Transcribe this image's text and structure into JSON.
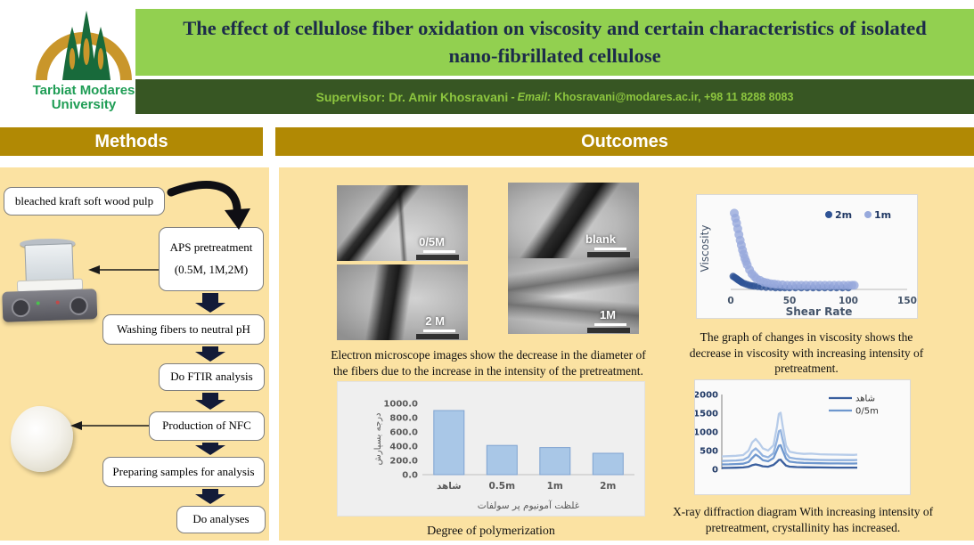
{
  "header": {
    "logo": {
      "text_line1": "Tarbiat Modares",
      "text_line2": "University"
    },
    "title": "The effect of cellulose fiber oxidation on viscosity and certain characteristics of isolated nano-fibrillated cellulose",
    "supervisor": {
      "prefix": "Supervisor: Dr. Amir Khosravani",
      "dash": "- ",
      "email_label": "Email:",
      "contact": "Khosravani@modares.ac.ir, +98 11 8288 8083"
    }
  },
  "sections": {
    "methods_label": "Methods",
    "outcomes_label": "Outcomes"
  },
  "methods_flow": {
    "pulp": "bleached kraft soft wood pulp",
    "aps_line1": "APS pretreatment",
    "aps_line2": "(0.5M, 1M,2M)",
    "washing": "Washing fibers to neutral pH",
    "ftir": "Do FTIR analysis",
    "nfc": "Production of NFC",
    "preparing": "Preparing samples for analysis",
    "analyses": "Do analyses"
  },
  "outcomes": {
    "micrograph_labels": [
      "0/5M",
      "blank",
      "2 M",
      "1M"
    ],
    "micrograph_caption": "Electron microscope images show the decrease in the diameter of the fibers due to the increase in the intensity of the pretreatment.",
    "viscosity_caption": "The graph of changes in viscosity shows the decrease in viscosity with increasing intensity of pretreatment.",
    "dp_caption": "Degree of polymerization",
    "xrd_caption": "X-ray diffraction diagram With increasing intensity of pretreatment, crystallinity has increased."
  },
  "colors": {
    "title_bg": "#92D050",
    "title_text": "#1C2B4A",
    "supervisor_bg": "#375623",
    "supervisor_text": "#8DC63F",
    "section_bar": "#B18904",
    "panel_bg": "#FBE2A2"
  },
  "chart_data": [
    {
      "id": "viscosity",
      "type": "scatter",
      "xlabel": "Shear Rate",
      "ylabel": "Viscosity",
      "xlim": [
        0,
        150
      ],
      "xticks": [
        0,
        50,
        100,
        150
      ],
      "yticks": [],
      "y_units": "relative (axis unlabeled)",
      "grid": false,
      "legend": [
        "2m",
        "1m"
      ],
      "legend_position": "top-right",
      "series": [
        {
          "name": "2m",
          "color": "#2F5496",
          "marker_radius": 4,
          "x": [
            2,
            3,
            4,
            5,
            6,
            7,
            8,
            9,
            10,
            12,
            14,
            16,
            18,
            20,
            23,
            26,
            30,
            34,
            38,
            42,
            46,
            50,
            55,
            60,
            65,
            70,
            75,
            80,
            85,
            90,
            95,
            100
          ],
          "y": [
            16,
            15,
            14,
            13,
            12,
            11,
            10,
            9,
            8,
            7,
            6,
            5,
            4.5,
            4,
            3.5,
            3,
            2.5,
            2.5,
            2,
            2,
            2,
            2,
            2,
            2,
            2,
            2,
            2,
            2,
            2,
            2,
            2,
            2
          ]
        },
        {
          "name": "1m",
          "color": "#97A9DC",
          "marker_radius": 5,
          "x": [
            3,
            4,
            5,
            6,
            7,
            8,
            9,
            10,
            11,
            12,
            13,
            14,
            16,
            18,
            20,
            22,
            25,
            28,
            31,
            34,
            37,
            40,
            44,
            48,
            52,
            56,
            60,
            64,
            68,
            72,
            76,
            80,
            84,
            88,
            92,
            96,
            100,
            103,
            105
          ],
          "y": [
            93,
            87,
            81,
            74,
            67,
            60,
            54,
            48,
            43,
            38,
            34,
            30,
            24,
            19,
            16,
            13,
            11,
            9,
            8,
            7,
            6.5,
            6,
            5.5,
            5,
            5,
            5,
            5,
            5,
            5,
            5,
            5,
            5,
            5,
            5,
            5,
            5,
            5,
            5,
            5
          ]
        }
      ]
    },
    {
      "id": "degree_of_polymerization",
      "type": "bar",
      "title": "Degree of polymerization",
      "categories": [
        "شاهد",
        "0.5m",
        "1m",
        "2m"
      ],
      "values": [
        900,
        410,
        380,
        300
      ],
      "xlabel": "غلظت آمونیوم پر سولفات",
      "ylabel": "درجه بسپارش",
      "ylim": [
        0,
        1000
      ],
      "yticks": [
        "0.0",
        "200.0",
        "400.0",
        "600.0",
        "800.0",
        "1000.0"
      ],
      "grid": false,
      "bar_color": "#A9C7E7",
      "bar_border": "#7FA3D1",
      "plot_bg": "#EFEFEF"
    },
    {
      "id": "xrd",
      "type": "line",
      "ylim": [
        0,
        2000
      ],
      "yticks": [
        0,
        500,
        1000,
        1500,
        2000
      ],
      "xticks": [],
      "grid": false,
      "legend": [
        "شاهد",
        "0/5m"
      ],
      "legend_position": "top-right",
      "x": [
        0,
        4,
        8,
        12,
        15,
        17,
        19,
        21,
        23,
        26,
        29,
        31,
        32,
        33,
        34,
        36,
        38,
        42,
        46,
        50,
        55,
        60,
        65,
        70,
        74,
        76
      ],
      "series": [
        {
          "name": "شاهد",
          "color": "#3A5F9E",
          "y": [
            35,
            38,
            42,
            50,
            70,
            110,
            130,
            110,
            82,
            70,
            120,
            200,
            250,
            258,
            200,
            100,
            72,
            60,
            55,
            52,
            50,
            48,
            46,
            45,
            45,
            46
          ]
        },
        {
          "name": "0/5m",
          "color": "#6E97CE",
          "y": [
            130,
            134,
            140,
            150,
            195,
            300,
            395,
            330,
            245,
            215,
            300,
            520,
            630,
            645,
            520,
            285,
            205,
            182,
            172,
            166,
            162,
            158,
            156,
            155,
            155,
            158
          ]
        },
        {
          "name": "",
          "color": "#93B3DF",
          "y": [
            222,
            228,
            236,
            252,
            330,
            480,
            560,
            470,
            362,
            322,
            432,
            780,
            1020,
            1045,
            820,
            432,
            312,
            282,
            266,
            256,
            250,
            248,
            246,
            245,
            245,
            250
          ]
        },
        {
          "name": "",
          "color": "#B7CCE9",
          "y": [
            345,
            352,
            362,
            382,
            500,
            720,
            812,
            702,
            562,
            502,
            642,
            1150,
            1480,
            1512,
            1200,
            642,
            472,
            432,
            412,
            418,
            402,
            396,
            392,
            388,
            386,
            392
          ]
        }
      ]
    }
  ]
}
